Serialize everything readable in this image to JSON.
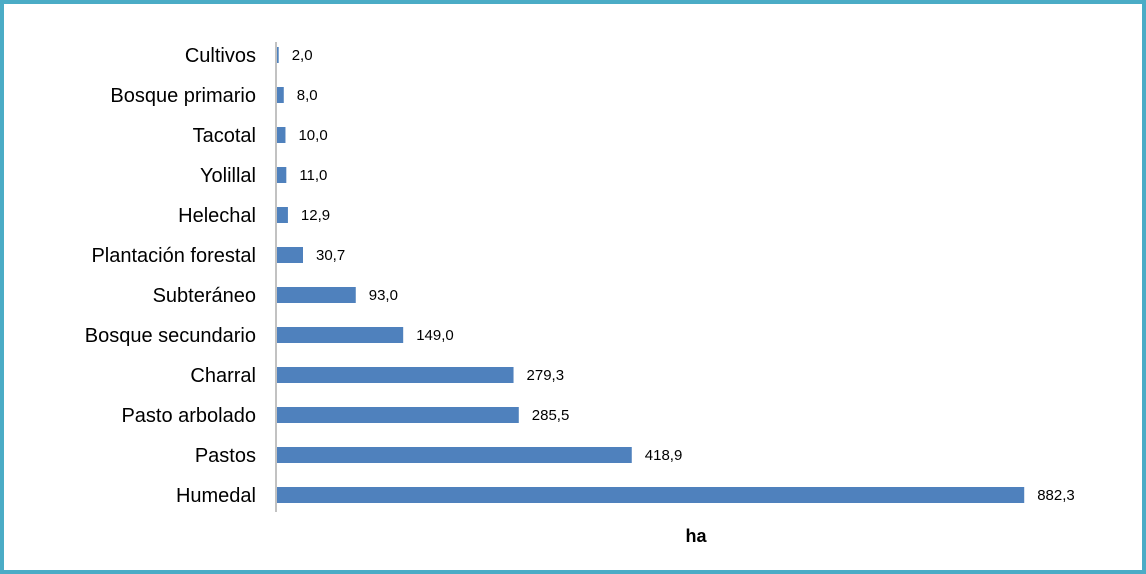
{
  "chart_data": {
    "type": "bar",
    "orientation": "horizontal",
    "title": "",
    "xlabel": "ha",
    "ylabel": "",
    "categories": [
      "Cultivos",
      "Bosque primario",
      "Tacotal",
      "Yolillal",
      "Helechal",
      "Plantación forestal",
      "Subteráneo",
      "Bosque secundario",
      "Charral",
      "Pasto arbolado",
      "Pastos",
      "Humedal"
    ],
    "values": [
      2.0,
      8.0,
      10.0,
      11.0,
      12.9,
      30.7,
      93.0,
      149.0,
      279.3,
      285.5,
      418.9,
      882.3
    ],
    "data_labels": [
      "2,0",
      "8,0",
      "10,0",
      "11,0",
      "12,9",
      "30,7",
      "93,0",
      "149,0",
      "279,3",
      "285,5",
      "418,9",
      "882,3"
    ],
    "xlim": [
      0,
      1000
    ],
    "grid": false,
    "legend": "none",
    "colors": {
      "bar": "#4f81bd",
      "axis": "#868686",
      "frame": "#4bacc6"
    }
  }
}
